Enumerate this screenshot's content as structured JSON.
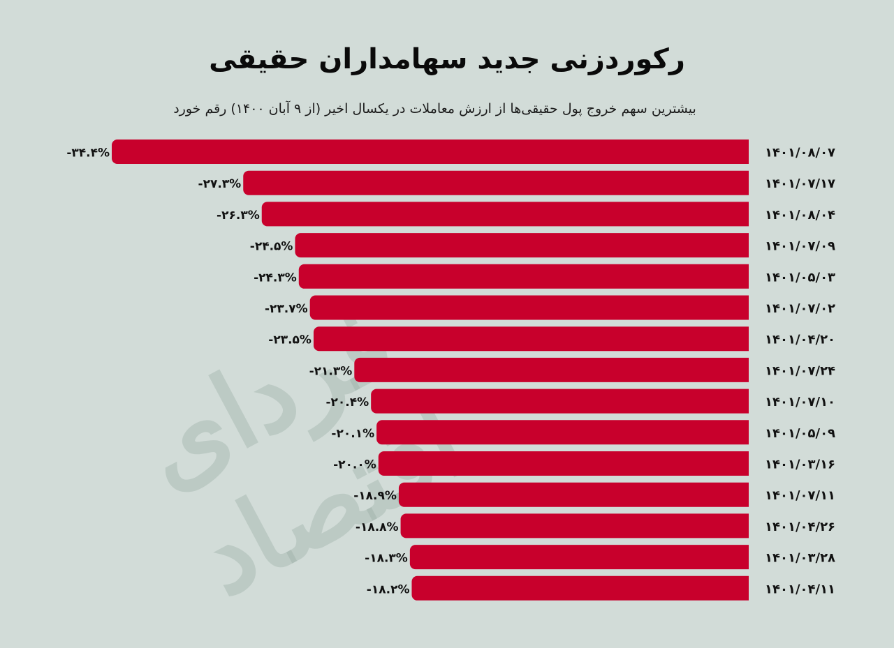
{
  "header": {
    "title": "رکوردزنی جدید سهامداران حقیقی",
    "subtitle": "بیشترین سهم خروج پول حقیقی‌ها از ارزش معاملات در یکسال اخیر (از ۹ آبان ۱۴۰۰) رقم خورد"
  },
  "watermark": "فردای اقتصاد",
  "colors": {
    "bar": "#c8002c",
    "background": "#d2dcd8",
    "text": "#111111"
  },
  "chart_data": {
    "type": "bar",
    "orientation": "horizontal",
    "categories": [
      "۱۴۰۱/۰۸/۰۷",
      "۱۴۰۱/۰۷/۱۷",
      "۱۴۰۱/۰۸/۰۴",
      "۱۴۰۱/۰۷/۰۹",
      "۱۴۰۱/۰۵/۰۳",
      "۱۴۰۱/۰۷/۰۲",
      "۱۴۰۱/۰۴/۲۰",
      "۱۴۰۱/۰۷/۲۴",
      "۱۴۰۱/۰۷/۱۰",
      "۱۴۰۱/۰۵/۰۹",
      "۱۴۰۱/۰۳/۱۶",
      "۱۴۰۱/۰۷/۱۱",
      "۱۴۰۱/۰۴/۲۶",
      "۱۴۰۱/۰۳/۲۸",
      "۱۴۰۱/۰۴/۱۱"
    ],
    "values": [
      -34.4,
      -27.3,
      -26.3,
      -24.5,
      -24.3,
      -23.7,
      -23.5,
      -21.3,
      -20.4,
      -20.1,
      -20.0,
      -18.9,
      -18.8,
      -18.3,
      -18.2
    ],
    "labels": [
      "-۳۴.۴%",
      "-۲۷.۳%",
      "-۲۶.۳%",
      "-۲۴.۵%",
      "-۲۴.۳%",
      "-۲۳.۷%",
      "-۲۳.۵%",
      "-۲۱.۳%",
      "-۲۰.۴%",
      "-۲۰.۱%",
      "-۲۰.۰%",
      "-۱۸.۹%",
      "-۱۸.۸%",
      "-۱۸.۳%",
      "-۱۸.۲%"
    ],
    "xlim": [
      0,
      -34.4
    ],
    "grid": false
  }
}
